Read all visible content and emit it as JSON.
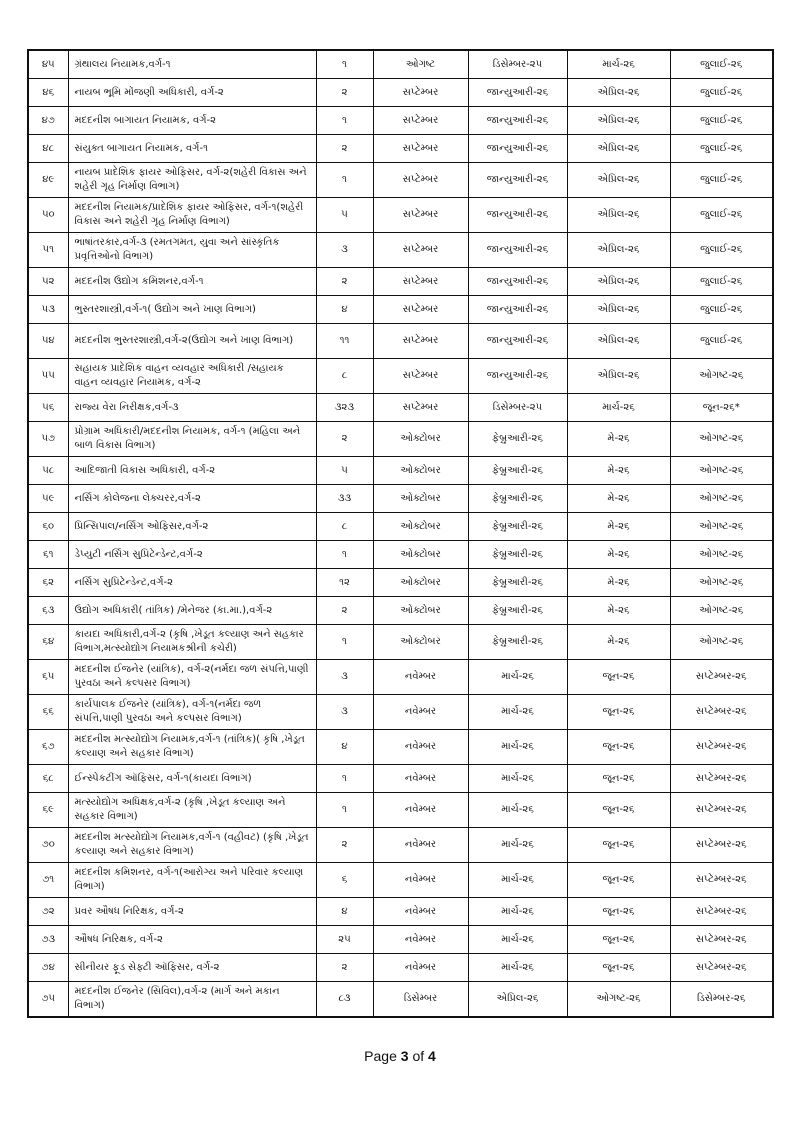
{
  "rows": [
    {
      "no": "૪૫",
      "post": "ગ્રંથાલય નિયામક,વર્ગ-૧",
      "count": "૧",
      "m1": "ઓગષ્ટ",
      "m2": "ડિસેમ્બર-૨૫",
      "m3": "માર્ચ-૨૬",
      "m4": "જુલાઈ-૨૬"
    },
    {
      "no": "૪૬",
      "post": "નાયબ ભૂમિ મોંજણી અધિકારી, વર્ગ-૨",
      "count": "૨",
      "m1": "સપ્ટેમ્બર",
      "m2": "જાન્યુઆરી-૨૬",
      "m3": "એપ્રિલ-૨૬",
      "m4": "જુલાઈ-૨૬"
    },
    {
      "no": "૪૭",
      "post": "મદદનીશ બાગાયત નિયામક, વર્ગ-૨",
      "count": "૧",
      "m1": "સપ્ટેમ્બર",
      "m2": "જાન્યુઆરી-૨૬",
      "m3": "એપ્રિલ-૨૬",
      "m4": "જુલાઈ-૨૬"
    },
    {
      "no": "૪૮",
      "post": "સંયુક્ત બાગાયત નિયામક, વર્ગ-૧",
      "count": "૨",
      "m1": "સપ્ટેમ્બર",
      "m2": "જાન્યુઆરી-૨૬",
      "m3": "એપ્રિલ-૨૬",
      "m4": "જુલાઈ-૨૬"
    },
    {
      "no": "૪૯",
      "post": "નાયબ પ્રાદેશિક ફાયર ઓફિસર, વર્ગ-૨(શહેરી વિકાસ અને શહેરી ગૃહ નિર્માણ વિભાગ)",
      "count": "૧",
      "m1": "સપ્ટેમ્બર",
      "m2": "જાન્યુઆરી-૨૬",
      "m3": "એપ્રિલ-૨૬",
      "m4": "જુલાઈ-૨૬"
    },
    {
      "no": "૫૦",
      "post": "મદદનીશ નિયામક/પ્રાદેશિક ફાયર ઓફિસર, વર્ગ-૧(શહેરી વિકાસ અને શહેરી ગૃહ નિર્માણ વિભાગ)",
      "count": "૫",
      "m1": "સપ્ટેમ્બર",
      "m2": "જાન્યુઆરી-૨૬",
      "m3": "એપ્રિલ-૨૬",
      "m4": "જુલાઈ-૨૬"
    },
    {
      "no": "૫૧",
      "post": "ભાષાંતરકાર,વર્ગ-૩ (રમતગમત, યુવા અને સાંસ્કૃતિક પ્રવૃત્તિઓનો વિભાગ)",
      "count": "૩",
      "m1": "સપ્ટેમ્બર",
      "m2": "જાન્યુઆરી-૨૬",
      "m3": "એપ્રિલ-૨૬",
      "m4": "જુલાઈ-૨૬"
    },
    {
      "no": "૫૨",
      "post": "મદદનીશ ઉદ્યોગ કમિશનર,વર્ગ-૧",
      "count": "૨",
      "m1": "સપ્ટેમ્બર",
      "m2": "જાન્યુઆરી-૨૬",
      "m3": "એપ્રિલ-૨૬",
      "m4": "જુલાઈ-૨૬"
    },
    {
      "no": "૫૩",
      "post": "ભુસ્તરશાસ્ત્રી,વર્ગ-૧( ઉદ્યોગ અને ખાણ વિભાગ)",
      "count": "૪",
      "m1": "સપ્ટેમ્બર",
      "m2": "જાન્યુઆરી-૨૬",
      "m3": "એપ્રિલ-૨૬",
      "m4": "જુલાઈ-૨૬"
    },
    {
      "no": "૫૪",
      "post": "મદદનીશ ભુસ્તરશાસ્ત્રી,વર્ગ-૨(ઉદ્યોગ અને ખાણ વિભાગ)",
      "count": "૧૧",
      "m1": "સપ્ટેમ્બર",
      "m2": "જાન્યુઆરી-૨૬",
      "m3": "એપ્રિલ-૨૬",
      "m4": "જુલાઈ-૨૬"
    },
    {
      "no": "૫૫",
      "post": "સહાયક પ્રાદેશિક વાહન વ્યવહાર અધિકારી /સહાયક વાહન વ્યવહાર નિયામક, વર્ગ-૨",
      "count": "૮",
      "m1": "સપ્ટેમ્બર",
      "m2": "જાન્યુઆરી-૨૬",
      "m3": "એપ્રિલ-૨૬",
      "m4": "ઓગષ્ટ-૨૬"
    },
    {
      "no": "૫૬",
      "post": "રાજ્ય વેરા નિરીક્ષક,વર્ગ-૩",
      "count": "૩૨૩",
      "m1": "સપ્ટેમ્બર",
      "m2": "ડિસેમ્બર-૨૫",
      "m3": "માર્ચ-૨૬",
      "m4": "જૂન-૨૬*"
    },
    {
      "no": "૫૭",
      "post": "પ્રોગ્રામ અધિકારી/મદદનીશ નિયામક, વર્ગ-૧ (મહિલા અને બાળ વિકાસ વિભાગ)",
      "count": "૨",
      "m1": "ઓક્ટોબર",
      "m2": "ફેબ્રુઆરી-૨૬",
      "m3": "મે-૨૬",
      "m4": "ઓગષ્ટ-૨૬"
    },
    {
      "no": "૫૮",
      "post": "આદિજાતી વિકાસ અધિકારી, વર્ગ-૨",
      "count": "૫",
      "m1": "ઓક્ટોબર",
      "m2": "ફેબ્રુઆરી-૨૬",
      "m3": "મે-૨૬",
      "m4": "ઓગષ્ટ-૨૬"
    },
    {
      "no": "૫૯",
      "post": "નર્સિંગ કોલેજના લેક્ચરર,વર્ગ-૨",
      "count": "૩૩",
      "m1": "ઓક્ટોબર",
      "m2": "ફેબ્રુઆરી-૨૬",
      "m3": "મે-૨૬",
      "m4": "ઓગષ્ટ-૨૬"
    },
    {
      "no": "૬૦",
      "post": "પ્રિન્સિપાલ/નર્સિંગ ઓફિસર,વર્ગ-૨",
      "count": "૮",
      "m1": "ઓક્ટોબર",
      "m2": "ફેબ્રુઆરી-૨૬",
      "m3": "મે-૨૬",
      "m4": "ઓગષ્ટ-૨૬"
    },
    {
      "no": "૬૧",
      "post": "ડેપ્યુટી નર્સિંગ સુપ્રિટેન્ડેન્ટ,વર્ગ-૨",
      "count": "૧",
      "m1": "ઓક્ટોબર",
      "m2": "ફેબ્રુઆરી-૨૬",
      "m3": "મે-૨૬",
      "m4": "ઓગષ્ટ-૨૬"
    },
    {
      "no": "૬૨",
      "post": "નર્સિંગ સુપ્રિટેન્ડેન્ટ,વર્ગ-૨",
      "count": "૧૨",
      "m1": "ઓક્ટોબર",
      "m2": "ફેબ્રુઆરી-૨૬",
      "m3": "મે-૨૬",
      "m4": "ઓગષ્ટ-૨૬"
    },
    {
      "no": "૬૩",
      "post": "ઉદ્યોગ અધિકારી( તાંત્રિક) /મેનેજર (કા.મા.),વર્ગ-૨",
      "count": "૨",
      "m1": "ઓક્ટોબર",
      "m2": "ફેબ્રુઆરી-૨૬",
      "m3": "મે-૨૬",
      "m4": "ઓગષ્ટ-૨૬"
    },
    {
      "no": "૬૪",
      "post": "કાયદા અધિકારી,વર્ગ-૨ (કૃષિ ,ખેડૂત કલ્યાણ અને સહકાર વિભાગ,મત્સ્યોદ્યોગ નિયામકશ્રીની કચેરી)",
      "count": "૧",
      "m1": "ઓક્ટોબર",
      "m2": "ફેબ્રુઆરી-૨૬",
      "m3": "મે-૨૬",
      "m4": "ઓગષ્ટ-૨૬"
    },
    {
      "no": "૬૫",
      "post": "મદદનીશ ઈજનેર (યાંત્રિક), વર્ગ-૨(નર્મદા જળ સંપત્તિ,પાણી પુરવઠા અને કલ્પસર વિભાગ)",
      "count": "૩",
      "m1": "નવેમ્બર",
      "m2": "માર્ચ-૨૬",
      "m3": "જૂન-૨૬",
      "m4": "સપ્ટેમ્બર-૨૬"
    },
    {
      "no": "૬૬",
      "post": "કાર્યપાલક ઈજનેર (યાંત્રિક), વર્ગ-૧(નર્મદા જળ સંપત્તિ,પાણી પુરવઠા અને કલ્પસર વિભાગ)",
      "count": "૩",
      "m1": "નવેમ્બર",
      "m2": "માર્ચ-૨૬",
      "m3": "જૂન-૨૬",
      "m4": "સપ્ટેમ્બર-૨૬"
    },
    {
      "no": "૬૭",
      "post": "મદદનીશ મત્સ્યોદ્યોગ નિયામક,વર્ગ-૧ (તાંત્રિક)( કૃષિ ,ખેડૂત કલ્યાણ અને સહકાર વિભાગ)",
      "count": "૪",
      "m1": "નવેમ્બર",
      "m2": "માર્ચ-૨૬",
      "m3": "જૂન-૨૬",
      "m4": "સપ્ટેમ્બર-૨૬"
    },
    {
      "no": "૬૮",
      "post": "ઈન્સ્પેકટીંગ ઑફિસર, વર્ગ-૧(કાયદા વિભાગ)",
      "count": "૧",
      "m1": "નવેમ્બર",
      "m2": "માર્ચ-૨૬",
      "m3": "જૂન-૨૬",
      "m4": "સપ્ટેમ્બર-૨૬"
    },
    {
      "no": "૬૯",
      "post": "મત્સ્યોદ્યોગ અધિક્ષક,વર્ગ-૨ (કૃષિ ,ખેડૂત કલ્યાણ અને સહકાર વિભાગ)",
      "count": "૧",
      "m1": "નવેમ્બર",
      "m2": "માર્ચ-૨૬",
      "m3": "જૂન-૨૬",
      "m4": "સપ્ટેમ્બર-૨૬"
    },
    {
      "no": "૭૦",
      "post": "મદદનીશ મત્સ્યોદ્યોગ નિયામક,વર્ગ-૧ (વહીવટ) (કૃષિ ,ખેડૂત કલ્યાણ અને સહકાર વિભાગ)",
      "count": "૨",
      "m1": "નવેમ્બર",
      "m2": "માર્ચ-૨૬",
      "m3": "જૂન-૨૬",
      "m4": "સપ્ટેમ્બર-૨૬"
    },
    {
      "no": "૭૧",
      "post": "મદદનીશ કમિશનર, વર્ગ-૧(આરોગ્ય અને પરિવાર કલ્યાણ વિભાગ)",
      "count": "૬",
      "m1": "નવેમ્બર",
      "m2": "માર્ચ-૨૬",
      "m3": "જૂન-૨૬",
      "m4": "સપ્ટેમ્બર-૨૬"
    },
    {
      "no": "૭૨",
      "post": "પ્રવર ઔષધ નિરિક્ષક, વર્ગ-૨",
      "count": "૪",
      "m1": "નવેમ્બર",
      "m2": "માર્ચ-૨૬",
      "m3": "જૂન-૨૬",
      "m4": "સપ્ટેમ્બર-૨૬"
    },
    {
      "no": "૭૩",
      "post": "ઔષધ નિરિક્ષક, વર્ગ-૨",
      "count": "૨૫",
      "m1": "નવેમ્બર",
      "m2": "માર્ચ-૨૬",
      "m3": "જૂન-૨૬",
      "m4": "સપ્ટેમ્બર-૨૬"
    },
    {
      "no": "૭૪",
      "post": "સીનીયર ફૂડ સેફ્ટી ઑફિસર, વર્ગ-૨",
      "count": "૨",
      "m1": "નવેમ્બર",
      "m2": "માર્ચ-૨૬",
      "m3": "જૂન-૨૬",
      "m4": "સપ્ટેમ્બર-૨૬"
    },
    {
      "no": "૭૫",
      "post": "મદદનીશ ઈજનેર (સિવિલ),વર્ગ-૨ (માર્ગ અને મકાન વિભાગ)",
      "count": "૮૩",
      "m1": "ડિસેમ્બર",
      "m2": "એપ્રિલ-૨૬",
      "m3": "ઓગષ્ટ-૨૬",
      "m4": "ડિસેમ્બર-૨૬"
    }
  ],
  "footer": {
    "prefix": "Page ",
    "current": "3",
    "middle": " of ",
    "total": "4"
  }
}
